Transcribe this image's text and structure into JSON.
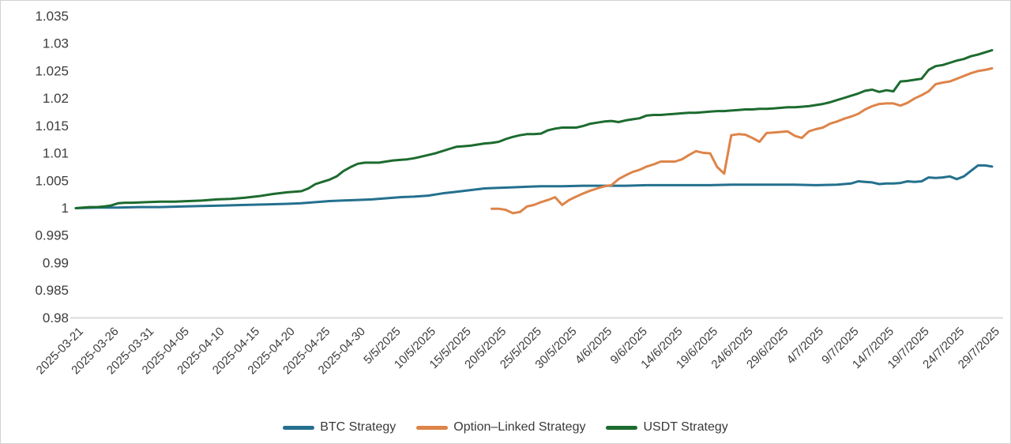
{
  "chart_data": {
    "type": "line",
    "title": "",
    "xlabel": "",
    "ylabel": "",
    "grid": false,
    "legend_position": "bottom",
    "ylim": [
      0.98,
      1.035
    ],
    "y_tick_step": 0.005,
    "y_tick_labels": [
      "1.035",
      "1.03",
      "1.025",
      "1.02",
      "1.015",
      "1.01",
      "1.005",
      "1",
      "0.995",
      "0.99",
      "0.985",
      "0.98"
    ],
    "x_tick_labels": [
      "2025-03-21",
      "2025-03-26",
      "2025-03-31",
      "2025-04-05",
      "2025-04-10",
      "2025-04-15",
      "2025-04-20",
      "2025-04-25",
      "2025-04-30",
      "5/5/2025",
      "10/5/2025",
      "15/5/2025",
      "20/5/2025",
      "25/5/2025",
      "30/5/2025",
      "4/6/2025",
      "9/6/2025",
      "14/6/2025",
      "19/6/2025",
      "24/6/2025",
      "29/6/2025",
      "4/7/2025",
      "9/7/2025",
      "14/7/2025",
      "19/7/2025",
      "24/7/2025",
      "29/7/2025"
    ],
    "x_tick_interval_days": 5,
    "x_range_days": [
      0,
      130
    ],
    "series": [
      {
        "name": "BTC Strategy",
        "color": "#24708e",
        "points": [
          [
            0,
            1.0
          ],
          [
            3,
            1.0001
          ],
          [
            6,
            1.0001
          ],
          [
            9,
            1.0002
          ],
          [
            12,
            1.0002
          ],
          [
            15,
            1.0003
          ],
          [
            18,
            1.0004
          ],
          [
            21,
            1.0005
          ],
          [
            24,
            1.0006
          ],
          [
            27,
            1.0007
          ],
          [
            30,
            1.0008
          ],
          [
            32,
            1.0009
          ],
          [
            34,
            1.0011
          ],
          [
            36,
            1.0013
          ],
          [
            38,
            1.0014
          ],
          [
            40,
            1.0015
          ],
          [
            42,
            1.0016
          ],
          [
            44,
            1.0018
          ],
          [
            46,
            1.002
          ],
          [
            48,
            1.0021
          ],
          [
            50,
            1.0023
          ],
          [
            52,
            1.0027
          ],
          [
            54,
            1.003
          ],
          [
            56,
            1.0033
          ],
          [
            58,
            1.0036
          ],
          [
            60,
            1.0037
          ],
          [
            62,
            1.0038
          ],
          [
            64,
            1.0039
          ],
          [
            66,
            1.004
          ],
          [
            69,
            1.004
          ],
          [
            72,
            1.0041
          ],
          [
            75,
            1.0041
          ],
          [
            78,
            1.0041
          ],
          [
            81,
            1.0042
          ],
          [
            84,
            1.0042
          ],
          [
            87,
            1.0042
          ],
          [
            90,
            1.0042
          ],
          [
            93,
            1.0043
          ],
          [
            96,
            1.0043
          ],
          [
            99,
            1.0043
          ],
          [
            102,
            1.0043
          ],
          [
            105,
            1.0042
          ],
          [
            108,
            1.0043
          ],
          [
            110,
            1.0045
          ],
          [
            111,
            1.0049
          ],
          [
            112,
            1.0048
          ],
          [
            113,
            1.0047
          ],
          [
            114,
            1.0044
          ],
          [
            115,
            1.0045
          ],
          [
            116,
            1.0045
          ],
          [
            117,
            1.0046
          ],
          [
            118,
            1.0049
          ],
          [
            119,
            1.0048
          ],
          [
            120,
            1.0049
          ],
          [
            121,
            1.0056
          ],
          [
            122,
            1.0055
          ],
          [
            123,
            1.0056
          ],
          [
            124,
            1.0058
          ],
          [
            125,
            1.0053
          ],
          [
            126,
            1.0058
          ],
          [
            127,
            1.0068
          ],
          [
            128,
            1.0078
          ],
          [
            129,
            1.0078
          ],
          [
            130,
            1.0076
          ]
        ]
      },
      {
        "name": "Option–Linked Strategy",
        "color": "#dd8449",
        "points": [
          [
            59,
            0.9999
          ],
          [
            60,
            0.9999
          ],
          [
            61,
            0.9997
          ],
          [
            62,
            0.9991
          ],
          [
            63,
            0.9993
          ],
          [
            64,
            1.0003
          ],
          [
            65,
            1.0006
          ],
          [
            66,
            1.0011
          ],
          [
            67,
            1.0015
          ],
          [
            68,
            1.002
          ],
          [
            69,
            1.0006
          ],
          [
            70,
            1.0015
          ],
          [
            71,
            1.0021
          ],
          [
            72,
            1.0027
          ],
          [
            73,
            1.0032
          ],
          [
            74,
            1.0036
          ],
          [
            75,
            1.004
          ],
          [
            76,
            1.0042
          ],
          [
            77,
            1.0053
          ],
          [
            78,
            1.006
          ],
          [
            79,
            1.0066
          ],
          [
            80,
            1.007
          ],
          [
            81,
            1.0076
          ],
          [
            82,
            1.008
          ],
          [
            83,
            1.0085
          ],
          [
            84,
            1.0085
          ],
          [
            85,
            1.0085
          ],
          [
            86,
            1.0089
          ],
          [
            87,
            1.0097
          ],
          [
            88,
            1.0104
          ],
          [
            89,
            1.0101
          ],
          [
            90,
            1.01
          ],
          [
            91,
            1.0075
          ],
          [
            92,
            1.0063
          ],
          [
            93,
            1.0133
          ],
          [
            94,
            1.0135
          ],
          [
            95,
            1.0134
          ],
          [
            96,
            1.0128
          ],
          [
            97,
            1.0121
          ],
          [
            98,
            1.0137
          ],
          [
            99,
            1.0138
          ],
          [
            100,
            1.0139
          ],
          [
            101,
            1.014
          ],
          [
            102,
            1.0132
          ],
          [
            103,
            1.0128
          ],
          [
            104,
            1.014
          ],
          [
            105,
            1.0144
          ],
          [
            106,
            1.0147
          ],
          [
            107,
            1.0154
          ],
          [
            108,
            1.0158
          ],
          [
            109,
            1.0163
          ],
          [
            110,
            1.0167
          ],
          [
            111,
            1.0172
          ],
          [
            112,
            1.018
          ],
          [
            113,
            1.0186
          ],
          [
            114,
            1.019
          ],
          [
            115,
            1.0191
          ],
          [
            116,
            1.0191
          ],
          [
            117,
            1.0187
          ],
          [
            118,
            1.0192
          ],
          [
            119,
            1.02
          ],
          [
            120,
            1.0206
          ],
          [
            121,
            1.0213
          ],
          [
            122,
            1.0226
          ],
          [
            123,
            1.0229
          ],
          [
            124,
            1.0231
          ],
          [
            125,
            1.0236
          ],
          [
            126,
            1.0241
          ],
          [
            127,
            1.0246
          ],
          [
            128,
            1.025
          ],
          [
            129,
            1.0252
          ],
          [
            130,
            1.0255
          ]
        ]
      },
      {
        "name": "USDT Strategy",
        "color": "#1d6b2f",
        "points": [
          [
            0,
            1.0
          ],
          [
            1,
            1.0001
          ],
          [
            2,
            1.0002
          ],
          [
            3,
            1.0002
          ],
          [
            4,
            1.0003
          ],
          [
            5,
            1.0005
          ],
          [
            6,
            1.0009
          ],
          [
            7,
            1.001
          ],
          [
            8,
            1.001
          ],
          [
            10,
            1.0011
          ],
          [
            12,
            1.0012
          ],
          [
            14,
            1.0012
          ],
          [
            16,
            1.0013
          ],
          [
            18,
            1.0014
          ],
          [
            20,
            1.0016
          ],
          [
            22,
            1.0017
          ],
          [
            24,
            1.0019
          ],
          [
            26,
            1.0022
          ],
          [
            28,
            1.0026
          ],
          [
            30,
            1.0029
          ],
          [
            32,
            1.0031
          ],
          [
            33,
            1.0036
          ],
          [
            34,
            1.0044
          ],
          [
            35,
            1.0048
          ],
          [
            36,
            1.0052
          ],
          [
            37,
            1.0058
          ],
          [
            38,
            1.0068
          ],
          [
            39,
            1.0075
          ],
          [
            40,
            1.0081
          ],
          [
            41,
            1.0083
          ],
          [
            42,
            1.0083
          ],
          [
            43,
            1.0083
          ],
          [
            44,
            1.0085
          ],
          [
            45,
            1.0087
          ],
          [
            46,
            1.0088
          ],
          [
            47,
            1.0089
          ],
          [
            48,
            1.0091
          ],
          [
            49,
            1.0094
          ],
          [
            50,
            1.0097
          ],
          [
            51,
            1.01
          ],
          [
            52,
            1.0104
          ],
          [
            53,
            1.0108
          ],
          [
            54,
            1.0112
          ],
          [
            55,
            1.0113
          ],
          [
            56,
            1.0114
          ],
          [
            57,
            1.0116
          ],
          [
            58,
            1.0118
          ],
          [
            59,
            1.0119
          ],
          [
            60,
            1.0121
          ],
          [
            61,
            1.0126
          ],
          [
            62,
            1.013
          ],
          [
            63,
            1.0133
          ],
          [
            64,
            1.0135
          ],
          [
            65,
            1.0135
          ],
          [
            66,
            1.0136
          ],
          [
            67,
            1.0142
          ],
          [
            68,
            1.0145
          ],
          [
            69,
            1.0147
          ],
          [
            70,
            1.0147
          ],
          [
            71,
            1.0147
          ],
          [
            72,
            1.015
          ],
          [
            73,
            1.0154
          ],
          [
            74,
            1.0156
          ],
          [
            75,
            1.0158
          ],
          [
            76,
            1.0159
          ],
          [
            77,
            1.0157
          ],
          [
            78,
            1.016
          ],
          [
            79,
            1.0162
          ],
          [
            80,
            1.0164
          ],
          [
            81,
            1.0169
          ],
          [
            82,
            1.017
          ],
          [
            83,
            1.017
          ],
          [
            84,
            1.0171
          ],
          [
            85,
            1.0172
          ],
          [
            86,
            1.0173
          ],
          [
            87,
            1.0174
          ],
          [
            88,
            1.0174
          ],
          [
            89,
            1.0175
          ],
          [
            90,
            1.0176
          ],
          [
            91,
            1.0177
          ],
          [
            92,
            1.0177
          ],
          [
            93,
            1.0178
          ],
          [
            94,
            1.0179
          ],
          [
            95,
            1.018
          ],
          [
            96,
            1.018
          ],
          [
            97,
            1.0181
          ],
          [
            98,
            1.0181
          ],
          [
            99,
            1.0182
          ],
          [
            100,
            1.0183
          ],
          [
            101,
            1.0184
          ],
          [
            102,
            1.0184
          ],
          [
            103,
            1.0185
          ],
          [
            104,
            1.0186
          ],
          [
            105,
            1.0188
          ],
          [
            106,
            1.019
          ],
          [
            107,
            1.0193
          ],
          [
            108,
            1.0197
          ],
          [
            109,
            1.0201
          ],
          [
            110,
            1.0205
          ],
          [
            111,
            1.0209
          ],
          [
            112,
            1.0214
          ],
          [
            113,
            1.0216
          ],
          [
            114,
            1.0212
          ],
          [
            115,
            1.0215
          ],
          [
            116,
            1.0213
          ],
          [
            117,
            1.0231
          ],
          [
            118,
            1.0232
          ],
          [
            119,
            1.0234
          ],
          [
            120,
            1.0236
          ],
          [
            121,
            1.0252
          ],
          [
            122,
            1.0259
          ],
          [
            123,
            1.0261
          ],
          [
            124,
            1.0265
          ],
          [
            125,
            1.0269
          ],
          [
            126,
            1.0272
          ],
          [
            127,
            1.0277
          ],
          [
            128,
            1.028
          ],
          [
            129,
            1.0284
          ],
          [
            130,
            1.0288
          ]
        ]
      }
    ],
    "axis_line_color": "#dadada",
    "label_color": "#3c3c3c"
  },
  "legend": {
    "items": [
      {
        "label": "BTC Strategy"
      },
      {
        "label": "Option–Linked Strategy"
      },
      {
        "label": "USDT Strategy"
      }
    ]
  }
}
